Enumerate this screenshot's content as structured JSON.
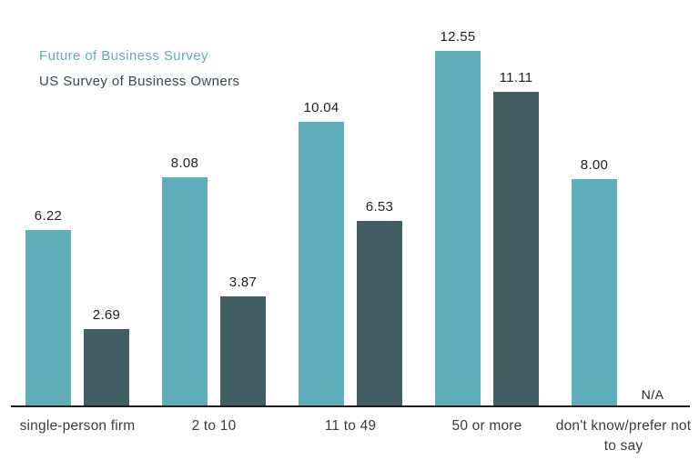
{
  "chart_data": {
    "type": "bar",
    "title": "",
    "xlabel": "",
    "ylabel": "",
    "grid": false,
    "legend_position": "top-left",
    "ylim": [
      0,
      14.3
    ],
    "categories": [
      "single-person firm",
      "2 to 10",
      "11 to 49",
      "50 or more",
      "don't know/prefer not to say"
    ],
    "series": [
      {
        "name": "Future of Business Survey",
        "color": "#5fadba",
        "values": [
          6.22,
          8.08,
          10.04,
          12.55,
          8.0
        ],
        "labels": [
          "6.22",
          "8.08",
          "10.04",
          "12.55",
          "8.00"
        ]
      },
      {
        "name": "US Survey of Business Owners",
        "color": "#415e64",
        "values": [
          2.69,
          3.87,
          6.53,
          11.11,
          null
        ],
        "labels": [
          "2.69",
          "3.87",
          "6.53",
          "11.11",
          "N/A"
        ]
      }
    ],
    "missing_value_label": "N/A"
  },
  "colors": {
    "series1": "#5fadba",
    "series2": "#415e64",
    "legend_series1_text": "#5fadba",
    "legend_series2_text": "#334a51",
    "axis_line": "#1c1c1c",
    "value_label_text": "#1f1f1f",
    "category_label_text": "#3c3c3c",
    "background": "#ffffff"
  }
}
